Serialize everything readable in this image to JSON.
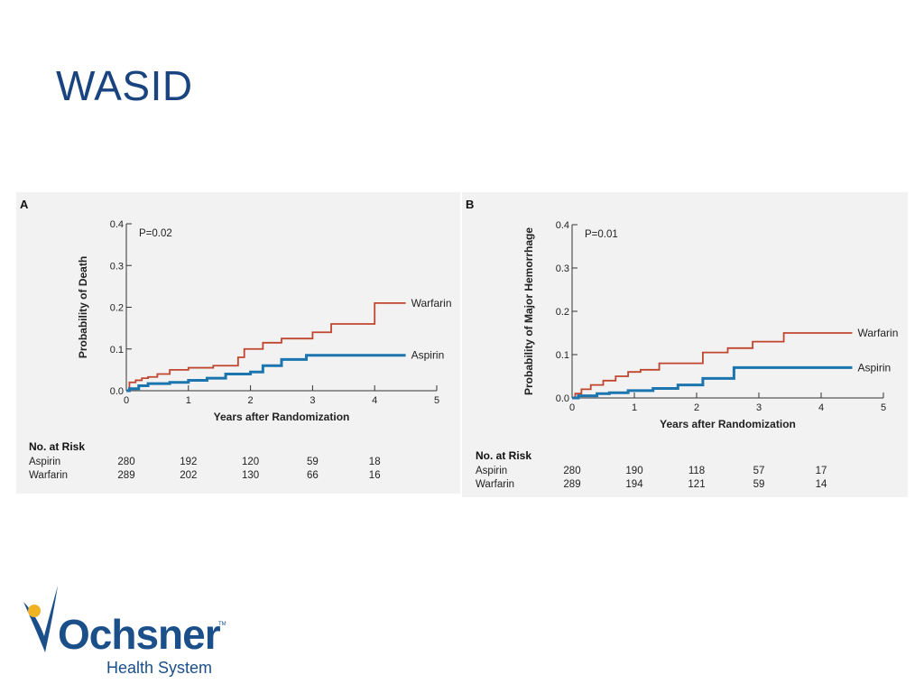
{
  "slide": {
    "title": "WASID"
  },
  "colors": {
    "warfarin": "#c0462e",
    "aspirin": "#1b75ae",
    "title": "#1a4480",
    "logo_blue": "#1a4f8a",
    "logo_gold": "#f0b323"
  },
  "logo": {
    "name": "Ochsner",
    "tm": "TM",
    "subtitle": "Health System"
  },
  "chart_data": [
    {
      "type": "line",
      "step": true,
      "panel": "A",
      "annotation": "P=0.02",
      "xlabel": "Years after Randomization",
      "ylabel": "Probability of Death",
      "xlim": [
        0,
        5
      ],
      "ylim": [
        0,
        0.4
      ],
      "xticks": [
        "0",
        "1",
        "2",
        "3",
        "4",
        "5"
      ],
      "yticks": [
        "0.0",
        "0.1",
        "0.2",
        "0.3",
        "0.4"
      ],
      "series": [
        {
          "name": "Warfarin",
          "x": [
            0,
            0.05,
            0.15,
            0.25,
            0.35,
            0.5,
            0.7,
            1.0,
            1.4,
            1.8,
            1.9,
            2.2,
            2.5,
            3.0,
            3.3,
            4.0,
            4.5
          ],
          "y": [
            0.0,
            0.02,
            0.025,
            0.03,
            0.033,
            0.04,
            0.05,
            0.055,
            0.06,
            0.08,
            0.1,
            0.115,
            0.125,
            0.14,
            0.16,
            0.21,
            0.21
          ]
        },
        {
          "name": "Aspirin",
          "x": [
            0,
            0.05,
            0.2,
            0.35,
            0.7,
            1.0,
            1.3,
            1.6,
            2.0,
            2.2,
            2.5,
            2.9,
            3.2,
            4.5
          ],
          "y": [
            0.0,
            0.005,
            0.012,
            0.017,
            0.02,
            0.025,
            0.03,
            0.04,
            0.045,
            0.06,
            0.075,
            0.085,
            0.085,
            0.085
          ]
        }
      ],
      "risk_table": {
        "title": "No. at Risk",
        "rows": [
          {
            "label": "Aspirin",
            "values": [
              "280",
              "192",
              "120",
              "59",
              "18"
            ]
          },
          {
            "label": "Warfarin",
            "values": [
              "289",
              "202",
              "130",
              "66",
              "16"
            ]
          }
        ]
      }
    },
    {
      "type": "line",
      "step": true,
      "panel": "B",
      "annotation": "P=0.01",
      "xlabel": "Years after Randomization",
      "ylabel": "Probability of Major Hemorrhage",
      "xlim": [
        0,
        5
      ],
      "ylim": [
        0,
        0.4
      ],
      "xticks": [
        "0",
        "1",
        "2",
        "3",
        "4",
        "5"
      ],
      "yticks": [
        "0.0",
        "0.1",
        "0.2",
        "0.3",
        "0.4"
      ],
      "series": [
        {
          "name": "Warfarin",
          "x": [
            0,
            0.05,
            0.15,
            0.3,
            0.5,
            0.7,
            0.9,
            1.1,
            1.4,
            2.1,
            2.5,
            2.9,
            3.4,
            4.5
          ],
          "y": [
            0.0,
            0.01,
            0.02,
            0.03,
            0.04,
            0.05,
            0.06,
            0.065,
            0.08,
            0.105,
            0.115,
            0.13,
            0.15,
            0.15
          ]
        },
        {
          "name": "Aspirin",
          "x": [
            0,
            0.1,
            0.4,
            0.6,
            0.9,
            1.3,
            1.7,
            2.1,
            2.6,
            4.5
          ],
          "y": [
            0.0,
            0.005,
            0.01,
            0.012,
            0.017,
            0.022,
            0.03,
            0.045,
            0.07,
            0.07
          ]
        }
      ],
      "risk_table": {
        "title": "No. at Risk",
        "rows": [
          {
            "label": "Aspirin",
            "values": [
              "280",
              "190",
              "118",
              "57",
              "17"
            ]
          },
          {
            "label": "Warfarin",
            "values": [
              "289",
              "194",
              "121",
              "59",
              "14"
            ]
          }
        ]
      }
    }
  ]
}
